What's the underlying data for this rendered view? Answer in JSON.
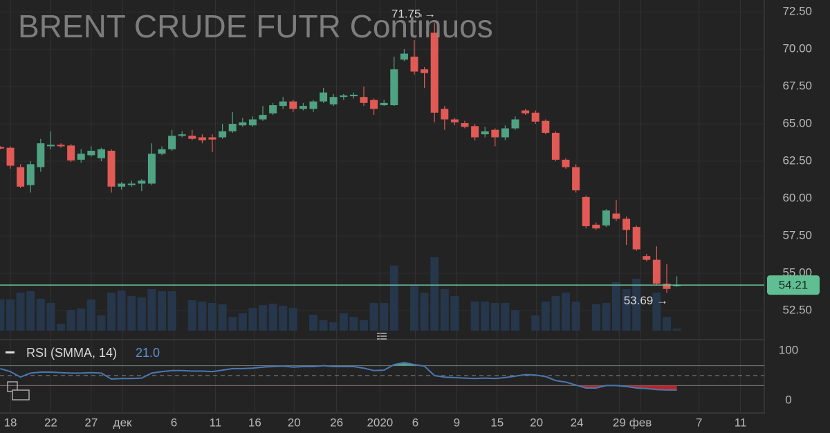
{
  "chart_data": {
    "type": "candlestick",
    "title": "BRENT CRUDE FUTR Continuos",
    "up_color": "#4fa383",
    "down_color": "#e15a55",
    "volume_color": "#26364b",
    "xlim": [
      -0.03,
      75.66
    ],
    "xticks": [
      {
        "value": 1,
        "label": "18"
      },
      {
        "value": 5,
        "label": "22"
      },
      {
        "value": 9,
        "label": "27"
      },
      {
        "value": 12.1,
        "label": "дек"
      },
      {
        "value": 17.2,
        "label": "6"
      },
      {
        "value": 21.3,
        "label": "11"
      },
      {
        "value": 25.2,
        "label": "16"
      },
      {
        "value": 29.1,
        "label": "20"
      },
      {
        "value": 33.3,
        "label": "26"
      },
      {
        "value": 37.6,
        "label": "2020"
      },
      {
        "value": 41.1,
        "label": "6"
      },
      {
        "value": 45.2,
        "label": "9"
      },
      {
        "value": 49.2,
        "label": "15"
      },
      {
        "value": 53.1,
        "label": "20"
      },
      {
        "value": 57.1,
        "label": "24"
      },
      {
        "value": 61.3,
        "label": "29"
      },
      {
        "value": 63.4,
        "label": "фев"
      },
      {
        "value": 69.2,
        "label": "7"
      },
      {
        "value": 73.3,
        "label": "11"
      }
    ],
    "ylim": [
      51.16,
      73.29
    ],
    "yticks": [
      {
        "value": 52.5,
        "label": "52.50"
      },
      {
        "value": 55,
        "label": "55.00"
      },
      {
        "value": 57.5,
        "label": "57.50"
      },
      {
        "value": 60,
        "label": "60.00"
      },
      {
        "value": 62.5,
        "label": "62.50"
      },
      {
        "value": 65,
        "label": "65.00"
      },
      {
        "value": 67.5,
        "label": "67.50"
      },
      {
        "value": 70,
        "label": "70.00"
      },
      {
        "value": 72.5,
        "label": "72.50"
      }
    ],
    "open": [
      63.45,
      63.4,
      62.1,
      60.9,
      62.1,
      63.5,
      63.6,
      63.55,
      62.6,
      62.9,
      62.7,
      63.2,
      60.8,
      60.9,
      61.0,
      61.0,
      63.0,
      63.3,
      64.2,
      64.2,
      64.1,
      64.1,
      64.1,
      64.5,
      64.9,
      64.9,
      65.3,
      65.7,
      66.2,
      66.5,
      66.0,
      66.0,
      66.5,
      66.3,
      66.8,
      66.85,
      66.8,
      66.6,
      66.25,
      66.25,
      69.3,
      69.5,
      68.65,
      71.1,
      66.0,
      65.3,
      65.05,
      64.85,
      64.3,
      64.6,
      64.1,
      64.7,
      65.9,
      65.75,
      65.2,
      64.4,
      62.6,
      62.1,
      60.1,
      58.25,
      58.2,
      59.0,
      58.65,
      58.1,
      56.15,
      55.9,
      54.3,
      54.2
    ],
    "high": [
      63.5,
      63.5,
      62.3,
      62.5,
      64.0,
      64.5,
      63.7,
      63.65,
      63.3,
      63.5,
      63.4,
      63.3,
      61.1,
      61.2,
      61.3,
      63.7,
      63.5,
      64.6,
      64.5,
      64.6,
      64.3,
      64.3,
      65.0,
      65.8,
      65.4,
      65.5,
      66.2,
      66.4,
      66.8,
      66.6,
      66.4,
      66.6,
      67.4,
      67.0,
      67.0,
      67.1,
      67.5,
      66.7,
      66.6,
      69.5,
      70.0,
      70.6,
      68.8,
      71.75,
      66.2,
      65.4,
      65.2,
      65.0,
      64.8,
      64.7,
      64.9,
      65.5,
      66.0,
      65.9,
      65.3,
      64.5,
      62.7,
      62.3,
      60.2,
      58.4,
      59.3,
      59.9,
      58.8,
      58.2,
      56.3,
      56.8,
      55.6,
      54.8
    ],
    "low": [
      63.3,
      62.0,
      60.7,
      60.4,
      61.8,
      63.3,
      63.4,
      62.45,
      62.4,
      62.8,
      62.5,
      60.4,
      60.6,
      60.8,
      60.5,
      60.9,
      62.9,
      63.2,
      64.1,
      63.9,
      63.7,
      63.1,
      64.0,
      64.4,
      64.8,
      64.8,
      65.2,
      65.6,
      66.0,
      65.8,
      65.9,
      65.8,
      66.4,
      66.2,
      66.6,
      66.7,
      66.2,
      65.6,
      66.2,
      66.2,
      69.2,
      68.3,
      67.4,
      65.1,
      64.6,
      64.9,
      64.7,
      63.9,
      64.1,
      63.5,
      63.9,
      64.6,
      65.6,
      65.0,
      64.3,
      62.5,
      62.0,
      60.4,
      58.0,
      57.9,
      58.1,
      58.5,
      56.9,
      56.5,
      55.8,
      54.2,
      53.69,
      54.1
    ],
    "close": [
      63.35,
      62.2,
      60.8,
      62.3,
      63.7,
      63.6,
      63.5,
      62.55,
      63.0,
      63.2,
      63.3,
      60.8,
      61.0,
      61.0,
      61.2,
      63.0,
      63.3,
      64.2,
      64.3,
      64.0,
      63.9,
      63.95,
      64.5,
      65.0,
      65.1,
      65.3,
      65.6,
      66.25,
      66.5,
      66.0,
      66.2,
      66.5,
      67.1,
      66.8,
      66.9,
      66.95,
      66.4,
      66.0,
      66.4,
      68.65,
      69.7,
      68.5,
      68.4,
      65.75,
      65.3,
      65.1,
      64.8,
      64.1,
      64.5,
      64.1,
      64.7,
      65.3,
      65.7,
      65.15,
      64.4,
      62.6,
      62.1,
      60.55,
      58.15,
      58.0,
      59.2,
      58.65,
      57.9,
      56.6,
      55.9,
      54.3,
      53.95,
      54.21
    ],
    "volume": [
      45,
      45,
      55,
      57,
      46,
      40,
      10,
      30,
      32,
      45,
      22,
      55,
      58,
      50,
      48,
      60,
      57,
      57,
      0,
      44,
      42,
      40,
      38,
      20,
      25,
      33,
      37,
      39,
      36,
      33,
      0,
      23,
      15,
      12,
      25,
      20,
      15,
      40,
      40,
      94,
      0,
      65,
      55,
      106,
      60,
      50,
      0,
      42,
      42,
      40,
      40,
      30,
      0,
      22,
      42,
      50,
      55,
      42,
      0,
      38,
      40,
      70,
      60,
      75,
      0,
      55,
      20,
      3
    ],
    "last_price": {
      "value": 54.21,
      "label": "54.21"
    },
    "annotations": [
      {
        "value": 71.75,
        "label": "71.75 →",
        "index": 43
      },
      {
        "value": 53.69,
        "label": "53.69 →",
        "index": 66
      }
    ],
    "rsi": {
      "label": "RSI (SMMA, 14)",
      "value_label": "21.0",
      "color": "#4a78b0",
      "ylim": [
        -23.6,
        120.8
      ],
      "yticks": [
        0,
        100
      ],
      "levels": [
        30,
        50,
        70
      ],
      "values": [
        64,
        58,
        47,
        55,
        57,
        57,
        56,
        55,
        55,
        56,
        55,
        43,
        44,
        44,
        45,
        55,
        58,
        60,
        60,
        59,
        59,
        58,
        61,
        64,
        64,
        65,
        67,
        68,
        69,
        67,
        68,
        68,
        70,
        68,
        68,
        68,
        65,
        60,
        61,
        72,
        76,
        72,
        69,
        50,
        47,
        46,
        45,
        44,
        45,
        44,
        46,
        49,
        52,
        51,
        48,
        40,
        37,
        31,
        25,
        25,
        30,
        30,
        28,
        25,
        24,
        22,
        21,
        21
      ]
    }
  }
}
